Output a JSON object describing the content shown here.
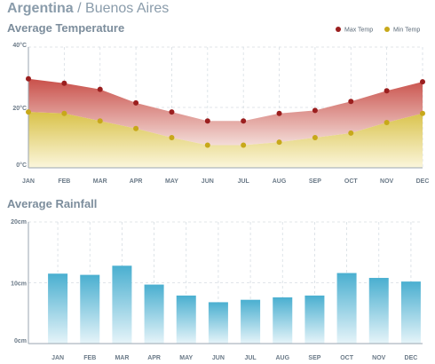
{
  "header": {
    "country": "Argentina",
    "separator": " / ",
    "city": "Buenos Aires"
  },
  "temperature": {
    "title": "Average Temperature"
  },
  "rainfall": {
    "title": "Average Rainfall"
  },
  "chart_data": [
    {
      "type": "area",
      "title": "Average Temperature",
      "categories": [
        "JAN",
        "FEB",
        "MAR",
        "APR",
        "MAY",
        "JUN",
        "JUL",
        "AUG",
        "SEP",
        "OCT",
        "NOV",
        "DEC"
      ],
      "y_ticks": [
        "0°C",
        "20°C",
        "40°C"
      ],
      "ylim": [
        0,
        40
      ],
      "grid": true,
      "legend_position": "top-right",
      "series": [
        {
          "name": "Max Temp",
          "color": "#9b1f1f",
          "fill_top": "#c9504a",
          "fill_bottom": "#f3dcd8",
          "values": [
            29.5,
            28,
            26,
            21.5,
            18.5,
            15.5,
            15.5,
            18,
            19,
            22,
            25.5,
            28.5
          ]
        },
        {
          "name": "Min Temp",
          "color": "#c7a81a",
          "fill_top": "#d9c24a",
          "fill_bottom": "#fbf6dc",
          "values": [
            18.5,
            18,
            15.5,
            13,
            10,
            7.5,
            7.5,
            8.5,
            10,
            11.5,
            15,
            18
          ]
        }
      ]
    },
    {
      "type": "bar",
      "title": "Average Rainfall",
      "categories": [
        "JAN",
        "FEB",
        "MAR",
        "APR",
        "MAY",
        "JUN",
        "JUL",
        "AUG",
        "SEP",
        "OCT",
        "NOV",
        "DEC"
      ],
      "y_ticks": [
        "0cm",
        "10cm",
        "20cm"
      ],
      "ylim": [
        0,
        20
      ],
      "grid": true,
      "bar_color_top": "#4aafd0",
      "bar_color_bottom": "#e6f4f9",
      "values": [
        11.5,
        11.3,
        12.8,
        9.7,
        7.9,
        6.8,
        7.2,
        7.6,
        7.9,
        11.6,
        10.8,
        10.2
      ]
    }
  ]
}
